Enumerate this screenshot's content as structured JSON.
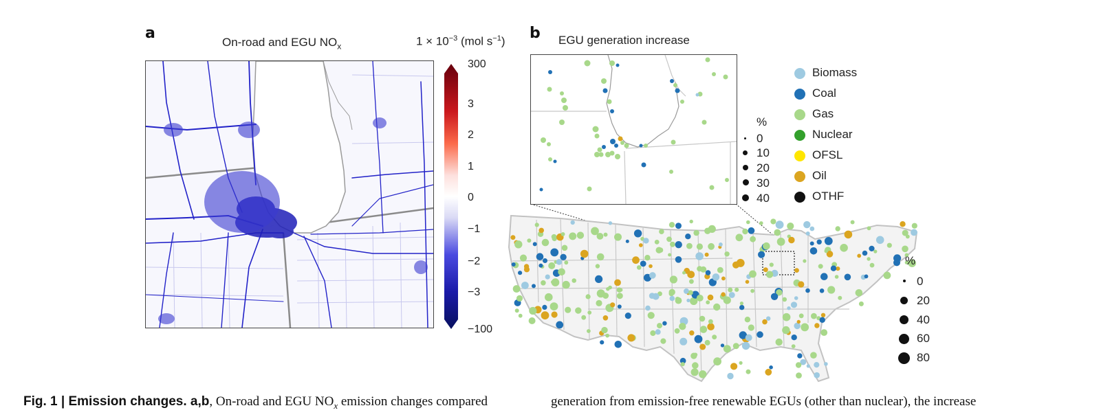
{
  "panel_a": {
    "letter": "a",
    "title_main": "On-road and EGU NO",
    "title_sub": "x",
    "units_prefix": "1 × 10",
    "units_exp": "−3",
    "units_suffix": " (mol s",
    "units_exp2": "−1",
    "units_end": ")",
    "colorbar": {
      "ticks": [
        "300",
        "3",
        "2",
        "1",
        "0",
        "−1",
        "−2",
        "−3",
        "−100"
      ],
      "colors": {
        "high": "#67000d",
        "mid": "#ffffff",
        "low": "#08105e"
      }
    }
  },
  "panel_b": {
    "letter": "b",
    "inset_title": "EGU generation increase",
    "legend": [
      {
        "label": "Biomass",
        "color": "#9ecae1"
      },
      {
        "label": "Coal",
        "color": "#2171b5"
      },
      {
        "label": "Gas",
        "color": "#a8d88a"
      },
      {
        "label": "Nuclear",
        "color": "#33a02c"
      },
      {
        "label": "OFSL",
        "color": "#ffe600"
      },
      {
        "label": "Oil",
        "color": "#dba520"
      },
      {
        "label": "OTHF",
        "color": "#111111"
      }
    ],
    "inset_size_legend": {
      "title": "%",
      "values": [
        "0",
        "10",
        "20",
        "30",
        "40"
      ]
    },
    "main_size_legend": {
      "title": "%",
      "values": [
        "0",
        "20",
        "40",
        "60",
        "80"
      ]
    }
  },
  "caption": {
    "fig_label": "Fig. 1 | Emission changes.",
    "panels": " a,b",
    "left_text_1": ", On-road and EGU NO",
    "left_sub": "x",
    "left_text_2": " emission changes compared",
    "right_text": "generation from emission-free renewable EGUs (other than nuclear), the increase"
  }
}
